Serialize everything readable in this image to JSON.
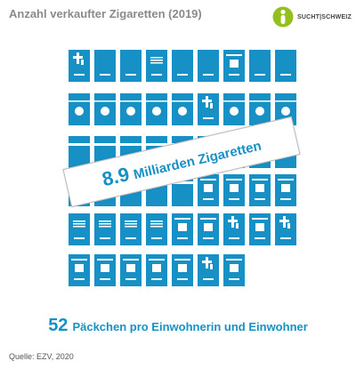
{
  "title": "Anzahl verkaufter Zigaretten (2019)",
  "logo": {
    "left_word": "SUCHT",
    "separator": "|",
    "right_word": "SCHWEIZ"
  },
  "chart_data": {
    "type": "pictogram",
    "title": "Anzahl verkaufter Zigaretten (2019)",
    "unit_icon": "cigarette-pack",
    "packs_per_inhabitant": 52,
    "packs_per_inhabitant_label": "Päckchen pro Einwohnerin und Einwohner",
    "total_cigarettes": "8.9",
    "total_cigarettes_label": "Milliarden Zigaretten",
    "rows": [
      [
        "cross",
        "line",
        "line",
        "stripes",
        "line",
        "line",
        "window",
        "line",
        "line"
      ],
      [
        "circle",
        "circle",
        "circle",
        "circle",
        "circle",
        "cross",
        "circle",
        "circle",
        "circle"
      ],
      [
        "bar",
        "bar",
        "bar",
        "bar",
        "bar",
        "bar",
        "bar",
        "bar",
        "bar"
      ],
      [
        "bar",
        "bar",
        "bar",
        "bar",
        "bar",
        "window",
        "window",
        "window",
        "window"
      ],
      [
        "stripes",
        "stripes",
        "stripes",
        "stripes",
        "window",
        "window",
        "cross",
        "window",
        "cross"
      ],
      [
        "window",
        "window",
        "window",
        "window",
        "window",
        "cross",
        "window"
      ]
    ]
  },
  "colors": {
    "pack": "#1790c6",
    "text": "#1790c6",
    "title": "#8a8a8a",
    "logo_green": "#93c01f"
  },
  "source": "Quelle: EZV, 2020"
}
